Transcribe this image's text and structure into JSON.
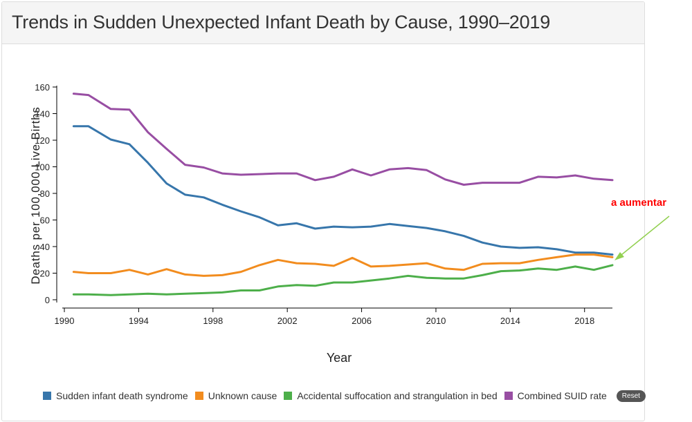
{
  "header": {
    "title": "Trends in Sudden Unexpected Infant Death by Cause, 1990–2019"
  },
  "annotation": {
    "text": "a aumentar",
    "color": "#ff0000",
    "arrow_color": "#92d050"
  },
  "legend": {
    "reset_label": "Reset"
  },
  "chart_data": {
    "type": "line",
    "title": "Trends in Sudden Unexpected Infant Death by Cause, 1990–2019",
    "xlabel": "Year",
    "ylabel": "Deaths per 100,000 Live Births",
    "xlim": [
      1990,
      2019.5
    ],
    "ylim": [
      0,
      160
    ],
    "xticks": [
      1990,
      1994,
      1998,
      2002,
      2006,
      2010,
      2014,
      2018
    ],
    "yticks": [
      0,
      20,
      40,
      60,
      80,
      100,
      120,
      140,
      160
    ],
    "grid": false,
    "legend_position": "bottom",
    "x": [
      1990.5,
      1991.3,
      1992.5,
      1993.5,
      1994.5,
      1995.5,
      1996.5,
      1997.5,
      1998.5,
      1999.5,
      2000.5,
      2001.5,
      2002.5,
      2003.5,
      2004.5,
      2005.5,
      2006.5,
      2007.5,
      2008.5,
      2009.5,
      2010.5,
      2011.5,
      2012.5,
      2013.5,
      2014.5,
      2015.5,
      2016.5,
      2017.5,
      2018.5,
      2019.5
    ],
    "series": [
      {
        "name": "Sudden infant death syndrome",
        "color": "#3776ab",
        "values": [
          130.5,
          130.5,
          120.5,
          117,
          103,
          87.5,
          79,
          77,
          71.5,
          66.5,
          62,
          56,
          57.5,
          53.5,
          55,
          54.5,
          55,
          57,
          55.5,
          54,
          51.5,
          48,
          43,
          40,
          39,
          39.5,
          38,
          35.5,
          35.5,
          34
        ]
      },
      {
        "name": "Unknown cause",
        "color": "#f28c1e",
        "values": [
          21,
          20,
          20,
          22.5,
          19,
          23,
          19,
          18,
          18.5,
          21,
          26,
          30,
          27.5,
          27,
          25.5,
          31.5,
          25,
          25.5,
          26.5,
          27.5,
          23.5,
          22.5,
          27,
          27.5,
          27.5,
          30,
          32,
          34,
          34,
          32
        ]
      },
      {
        "name": "Accidental suffocation and strangulation in bed",
        "color": "#4daf4a",
        "values": [
          4,
          4,
          3.5,
          4,
          4.5,
          4,
          4.5,
          5,
          5.5,
          7,
          7,
          10,
          11,
          10.5,
          13,
          13,
          14.5,
          16,
          18,
          16.5,
          16,
          16,
          18.5,
          21.5,
          22,
          23.5,
          22.5,
          25,
          22.5,
          26
        ]
      },
      {
        "name": "Combined SUID rate",
        "color": "#984ea3",
        "values": [
          155,
          154,
          143.5,
          143,
          126,
          113.5,
          101.5,
          99.5,
          95,
          94,
          94.5,
          95,
          95,
          90,
          92.5,
          98,
          93.5,
          98,
          99,
          97.5,
          90.5,
          86.5,
          88,
          88,
          88,
          92.5,
          92,
          93.5,
          91,
          90
        ]
      }
    ]
  }
}
